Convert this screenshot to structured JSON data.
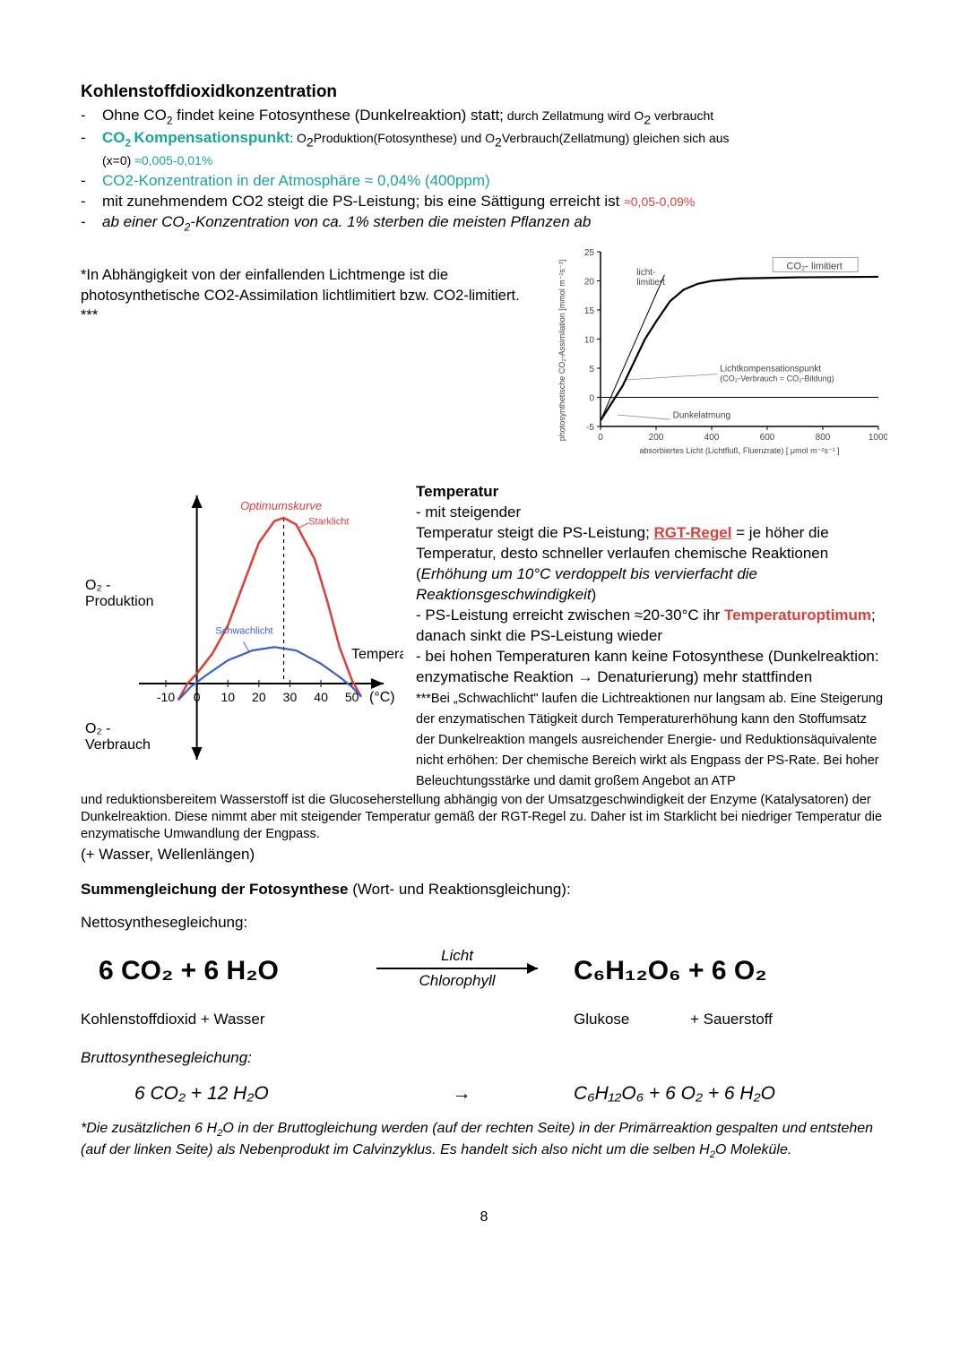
{
  "heading1": "Kohlenstoffdioxidkonzentration",
  "b1_a": "Ohne CO",
  "b1_b": " findet keine Fotosynthese (Dunkelreaktion) statt;",
  "b1_c": " durch Zellatmung wird O",
  "b1_d": " verbraucht",
  "b2_a": "CO",
  "b2_b": " Kompensationspunkt",
  "b2_c": ": O",
  "b2_d": "Produktion(Fotosynthese) und O",
  "b2_e": "Verbrauch(Zellatmung) gleichen sich aus",
  "b2_f": "(x=0) ",
  "b2_g": "≈0,005-0,01%",
  "b3": "CO2-Konzentration in der Atmosphäre ≈ 0,04% (400ppm)",
  "b4_a": "mit zunehmendem CO2 steigt die PS-Leistung; bis eine Sättigung erreicht ist ",
  "b4_b": "≈0,05-0,09%",
  "b5_a": "ab einer CO",
  "b5_b": "-Konzentration von ca. 1% sterben die meisten Pflanzen ab",
  "note1_a": "*In Abhängigkeit von der einfallenden Lichtmenge ist die photosynthetische CO2-Assimilation lichtlimitiert bzw. CO2-limitiert.",
  "note1_b": "***",
  "plot2": {
    "y_label": "photosynthetische CO₂-Assimilation [mmol m⁻²s⁻¹]",
    "x_label": "absorbiertes Licht (Lichtfluß, Fluenzrate)  [ μmol m⁻²s⁻¹ ]",
    "y_ticks": [
      -5,
      0,
      5,
      10,
      15,
      20,
      25
    ],
    "x_ticks": [
      0,
      200,
      400,
      600,
      800,
      1000
    ],
    "ann_co2": "CO₂- limitiert",
    "ann_licht": "licht-\nlimitiert",
    "ann_komp1": "Lichtkompensationspunkt",
    "ann_komp2": "(CO₂-Verbrauch = CO₂-Bildung)",
    "ann_dunkel": "Dunkelatmung",
    "curve": [
      [
        0,
        -4
      ],
      [
        40,
        -1
      ],
      [
        80,
        2
      ],
      [
        120,
        6
      ],
      [
        160,
        10
      ],
      [
        200,
        13
      ],
      [
        250,
        16.5
      ],
      [
        300,
        18.5
      ],
      [
        350,
        19.5
      ],
      [
        400,
        20
      ],
      [
        500,
        20.4
      ],
      [
        700,
        20.6
      ],
      [
        1000,
        20.7
      ]
    ],
    "tan_line": [
      [
        0,
        -4
      ],
      [
        230,
        21
      ]
    ],
    "line_color": "#000000",
    "axis_color": "#000000"
  },
  "curve_plot": {
    "y_top": "O₂ -\nProduktion",
    "y_bot": "O₂ -\nVerbrauch",
    "x_label": "Temperatur",
    "x_unit": "(°C)",
    "x_ticks": [
      -10,
      0,
      10,
      20,
      30,
      40,
      50
    ],
    "label_opt": "Optimumskurve",
    "label_stark": "Starklicht",
    "label_schwach": "Schwachlicht",
    "red_path": [
      [
        -6,
        -10
      ],
      [
        -3,
        0
      ],
      [
        0,
        6
      ],
      [
        5,
        18
      ],
      [
        10,
        35
      ],
      [
        15,
        60
      ],
      [
        20,
        85
      ],
      [
        25,
        98
      ],
      [
        28,
        100
      ],
      [
        32,
        96
      ],
      [
        38,
        75
      ],
      [
        42,
        50
      ],
      [
        46,
        22
      ],
      [
        50,
        2
      ],
      [
        53,
        -8
      ]
    ],
    "blue_path": [
      [
        -6,
        -10
      ],
      [
        -2,
        -2
      ],
      [
        3,
        5
      ],
      [
        10,
        14
      ],
      [
        18,
        20
      ],
      [
        25,
        22
      ],
      [
        32,
        20
      ],
      [
        40,
        12
      ],
      [
        46,
        4
      ],
      [
        50,
        -2
      ],
      [
        53,
        -8
      ]
    ],
    "red": "#d8403a",
    "blue": "#3b5fc4",
    "axis": "#000000"
  },
  "temp_h": "Temperatur",
  "temp_1": "- mit steigender",
  "temp_2a": "Temperatur steigt die PS-Leistung; ",
  "temp_2b": "RGT-Regel",
  "temp_2c": " = je höher die Temperatur, desto schneller verlaufen chemische Reaktionen (",
  "temp_2d": "Erhöhung um 10°C verdoppelt bis vervierfacht die Reaktionsgeschwindigkeit",
  "temp_2e": ")",
  "temp_3a": "- PS-Leistung erreicht zwischen ≈20-30°C ihr ",
  "temp_3b": "Temperaturoptimum",
  "temp_3c": "; danach sinkt die PS-Leistung wieder",
  "temp_4": "- bei hohen Temperaturen kann keine Fotosynthese (Dunkelreaktion: enzymatische Reaktion → Denaturierung) mehr stattfinden",
  "temp_fine": "***Bei „Schwachlicht\" laufen die Lichtreaktionen nur langsam ab. Eine Steigerung der enzymatischen Tätigkeit durch Temperaturerhöhung kann den Stoffumsatz  der Dunkelreaktion mangels ausreichender Energie- und  Reduktionsäquivalente nicht erhöhen: Der chemische Bereich wirkt als Engpass der PS-Rate. Bei hoher Beleuchtungsstärke und damit großem Angebot an ATP",
  "cont_text": "und reduktionsbereitem Wasserstoff ist die Glucoseherstellung abhängig von der Umsatzgeschwindigkeit der Enzyme (Katalysatoren) der Dunkelreaktion. Diese nimmt aber mit steigender Temperatur gemäß der RGT-Regel zu. Daher ist im Starklicht bei niedriger Temperatur die enzymatische Umwandlung der Engpass.",
  "cont_text2": "(+ Wasser, Wellenlängen)",
  "sum_h_a": "Summengleichung der Fotosynthese",
  "sum_h_b": " (Wort- und Reaktionsgleichung):",
  "netto_label": "Nettosynthesegleichung:",
  "eq1_left": "6 CO₂  +  6 H₂O",
  "eq1_top": "Licht",
  "eq1_bot": "Chlorophyll",
  "eq1_right": "C₆H₁₂O₆  +  6 O₂",
  "word_l": "Kohlenstoffdioxid  +    Wasser",
  "word_r1": "Glukose",
  "word_r2": "+    Sauerstoff",
  "brutto_label": "Bruttosynthesegleichung:",
  "eq2_left": "6 CO₂  +  12 H₂O",
  "eq2_arrow": "→",
  "eq2_right": "C₆H₁₂O₆  +  6 O₂  +  6 H₂O",
  "foot_a": "*Die zusätzlichen 6 H",
  "foot_b": "O in der Bruttogleichung werden (auf der rechten Seite) in der Primärreaktion gespalten und entstehen (auf der linken Seite) als Nebenprodukt im Calvinzyklus. Es handelt sich also nicht um die selben H",
  "foot_c": "O Moleküle.",
  "page_number": "8"
}
